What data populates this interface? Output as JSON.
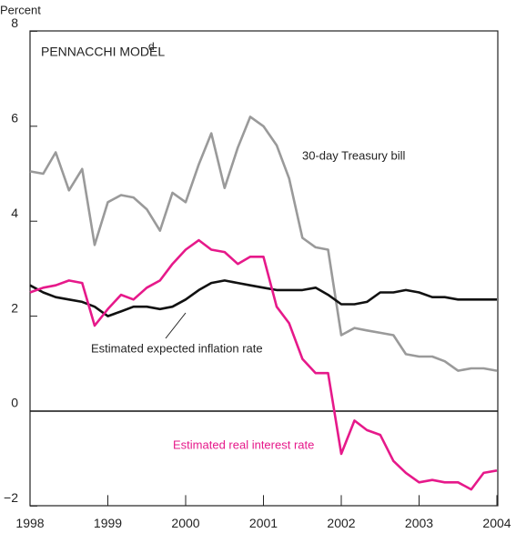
{
  "chart_data": {
    "type": "line",
    "title": "PENNACCHI MODEL",
    "title_note": "d",
    "y_label": "Percent",
    "annotations": [
      "30-day Treasury bill",
      "Estimated expected inflation rate",
      "Estimated real interest rate"
    ],
    "x": [
      1998,
      1998.17,
      1998.33,
      1998.5,
      1998.67,
      1998.83,
      1999,
      1999.17,
      1999.33,
      1999.5,
      1999.67,
      1999.83,
      2000,
      2000.17,
      2000.33,
      2000.5,
      2000.67,
      2000.83,
      2001,
      2001.17,
      2001.33,
      2001.5,
      2001.67,
      2001.83,
      2002,
      2002.17,
      2002.33,
      2002.5,
      2002.67,
      2002.83,
      2003,
      2003.17,
      2003.33,
      2003.5,
      2003.67,
      2003.83,
      2004
    ],
    "series": [
      {
        "name": "30-day Treasury bill",
        "color": "#9a9a9a",
        "values": [
          5.05,
          5.0,
          5.45,
          4.65,
          5.1,
          3.5,
          4.4,
          4.55,
          4.5,
          4.25,
          3.8,
          4.6,
          4.4,
          5.2,
          5.85,
          4.7,
          5.55,
          6.2,
          6.0,
          5.6,
          4.9,
          3.65,
          3.45,
          3.4,
          1.6,
          1.75,
          1.7,
          1.65,
          1.6,
          1.2,
          1.15,
          1.15,
          1.05,
          0.85,
          0.9,
          0.9,
          0.85
        ]
      },
      {
        "name": "Estimated expected inflation rate",
        "color": "#111111",
        "values": [
          2.65,
          2.5,
          2.4,
          2.35,
          2.3,
          2.2,
          2.0,
          2.1,
          2.2,
          2.2,
          2.15,
          2.2,
          2.35,
          2.55,
          2.7,
          2.75,
          2.7,
          2.65,
          2.6,
          2.55,
          2.55,
          2.55,
          2.6,
          2.45,
          2.25,
          2.25,
          2.3,
          2.5,
          2.5,
          2.55,
          2.5,
          2.4,
          2.4,
          2.35,
          2.35,
          2.35,
          2.35
        ]
      },
      {
        "name": "Estimated real interest rate",
        "color": "#e6198a",
        "values": [
          2.5,
          2.6,
          2.65,
          2.75,
          2.7,
          1.8,
          2.15,
          2.45,
          2.35,
          2.6,
          2.75,
          3.1,
          3.4,
          3.6,
          3.4,
          3.35,
          3.1,
          3.25,
          3.25,
          2.2,
          1.85,
          1.1,
          0.8,
          0.8,
          -0.9,
          -0.2,
          -0.4,
          -0.5,
          -1.05,
          -1.3,
          -1.5,
          -1.45,
          -1.5,
          -1.5,
          -1.65,
          -1.3,
          -1.25
        ]
      }
    ],
    "xlim": [
      1998,
      2004
    ],
    "xticks": [
      1998,
      1999,
      2000,
      2001,
      2002,
      2003,
      2004
    ],
    "ylim": [
      -2,
      8
    ],
    "yticks": [
      {
        "value": -2,
        "label": "−2"
      },
      0,
      2,
      4,
      6,
      8
    ],
    "grid": false
  }
}
